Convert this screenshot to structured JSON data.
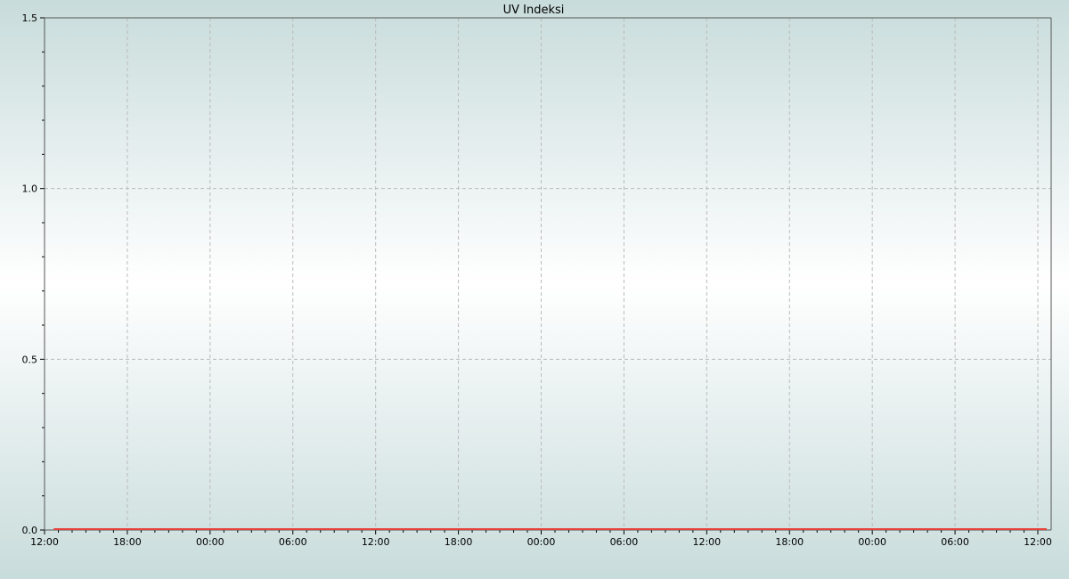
{
  "chart_data": {
    "type": "line",
    "title": "UV Indeksi",
    "xlabel": "",
    "ylabel": "",
    "x_tick_labels": [
      "12:00",
      "18:00",
      "00:00",
      "06:00",
      "12:00",
      "18:00",
      "00:00",
      "06:00",
      "12:00",
      "18:00",
      "00:00",
      "06:00",
      "12:00"
    ],
    "y_tick_labels": [
      "0.0",
      "0.5",
      "1.0",
      "1.5"
    ],
    "ylim": [
      0,
      1.5
    ],
    "grid": true,
    "series": [
      {
        "color": "#e8403a",
        "x_start": "12:40",
        "x_end": "12:50",
        "values_constant": 0
      }
    ]
  }
}
